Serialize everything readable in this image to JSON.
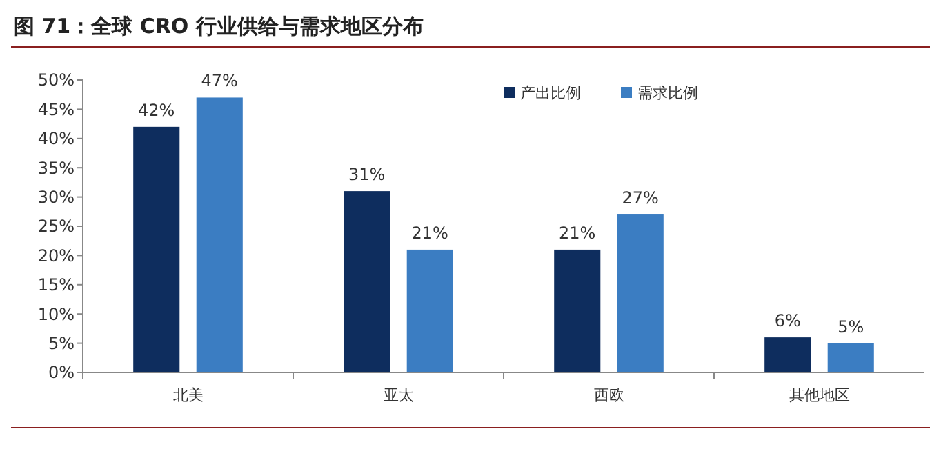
{
  "chart_data": {
    "type": "bar",
    "title": "图 71：全球 CRO 行业供给与需求地区分布",
    "categories": [
      "北美",
      "亚太",
      "西欧",
      "其他地区"
    ],
    "series": [
      {
        "name": "产出比例",
        "color": "#0e2d5e",
        "values": [
          42,
          31,
          21,
          6
        ],
        "value_labels": [
          "42%",
          "31%",
          "21%",
          "6%"
        ]
      },
      {
        "name": "需求比例",
        "color": "#3b7dc2",
        "values": [
          47,
          21,
          27,
          5
        ],
        "value_labels": [
          "47%",
          "21%",
          "27%",
          "5%"
        ]
      }
    ],
    "ylim": [
      0,
      50
    ],
    "yticks": [
      {
        "value": 0,
        "label": "0%"
      },
      {
        "value": 5,
        "label": "5%"
      },
      {
        "value": 10,
        "label": "10%"
      },
      {
        "value": 15,
        "label": "15%"
      },
      {
        "value": 20,
        "label": "20%"
      },
      {
        "value": 25,
        "label": "25%"
      },
      {
        "value": 30,
        "label": "30%"
      },
      {
        "value": 35,
        "label": "35%"
      },
      {
        "value": 40,
        "label": "40%"
      },
      {
        "value": 45,
        "label": "45%"
      },
      {
        "value": 50,
        "label": "50%"
      }
    ],
    "legend": "top",
    "grid": false
  }
}
